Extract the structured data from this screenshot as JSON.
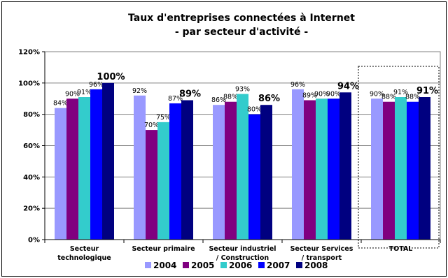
{
  "chart_data": {
    "type": "bar",
    "title_line1": "Taux d'entreprises connectées à Internet",
    "title_line2": "- par secteur d'activité -",
    "xlabel": "",
    "ylabel": "",
    "ylim": [
      0,
      120
    ],
    "yticks": [
      0,
      20,
      40,
      60,
      80,
      100,
      120
    ],
    "ytick_labels": [
      "0%",
      "20%",
      "40%",
      "60%",
      "80%",
      "100%",
      "120%"
    ],
    "grid": true,
    "legend_position": "bottom",
    "categories": [
      [
        "Secteur",
        "technologique"
      ],
      [
        "Secteur primaire"
      ],
      [
        "Secteur industriel",
        "/ Construction"
      ],
      [
        "Secteur Services",
        "/ transport"
      ],
      [
        "TOTAL"
      ]
    ],
    "highlighted_category": "TOTAL",
    "series": [
      {
        "name": "2004",
        "color": "#9999ff",
        "values": [
          84,
          92,
          86,
          96,
          90
        ],
        "labels": [
          "84%",
          "92%",
          "86%",
          "96%",
          "90%"
        ]
      },
      {
        "name": "2005",
        "color": "#800080",
        "values": [
          90,
          70,
          88,
          89,
          88
        ],
        "labels": [
          "90%",
          "70%",
          "88%",
          "89%",
          "88%"
        ]
      },
      {
        "name": "2006",
        "color": "#33cccc",
        "values": [
          91,
          75,
          93,
          90,
          91
        ],
        "labels": [
          "91%",
          "75%",
          "93%",
          "90%",
          "91%"
        ]
      },
      {
        "name": "2007",
        "color": "#0000ff",
        "values": [
          96,
          87,
          80,
          90,
          88
        ],
        "labels": [
          "96%",
          "87%",
          "80%",
          "90%",
          "88%"
        ]
      },
      {
        "name": "2008",
        "color": "#000080",
        "values": [
          100,
          89,
          86,
          94,
          91
        ],
        "labels": [
          "100%",
          "89%",
          "86%",
          "94%",
          "91%"
        ]
      }
    ],
    "emphasized_series": "2008"
  }
}
